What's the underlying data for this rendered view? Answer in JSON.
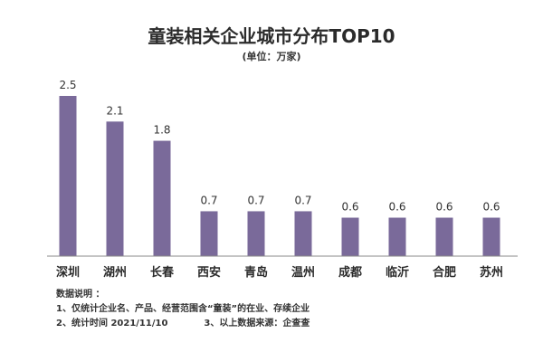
{
  "chart_data": {
    "type": "bar",
    "title": "童装相关企业城市分布TOP10",
    "subtitle": "(单位：万家)",
    "categories": [
      "深圳",
      "湖州",
      "长春",
      "西安",
      "青岛",
      "温州",
      "成都",
      "临沂",
      "合肥",
      "苏州"
    ],
    "values": [
      2.5,
      2.1,
      1.8,
      0.7,
      0.7,
      0.7,
      0.6,
      0.6,
      0.6,
      0.6
    ],
    "data_labels": [
      "2.5",
      "2.1",
      "1.8",
      "0.7",
      "0.7",
      "0.7",
      "0.6",
      "0.6",
      "0.6",
      "0.6"
    ],
    "xlabel": "",
    "ylabel": "",
    "ylim": [
      0,
      2.5
    ],
    "grid": false,
    "bar_color": "#7a6a9a"
  },
  "notes": {
    "heading": "数据说明 ：",
    "line1": "1、仅统计企业名、产品、经营范围含“童装”的在业、存续企业",
    "line2a": "2、统计时间  2021/11/10",
    "line2b": "3、以上数据来源：企查查"
  }
}
